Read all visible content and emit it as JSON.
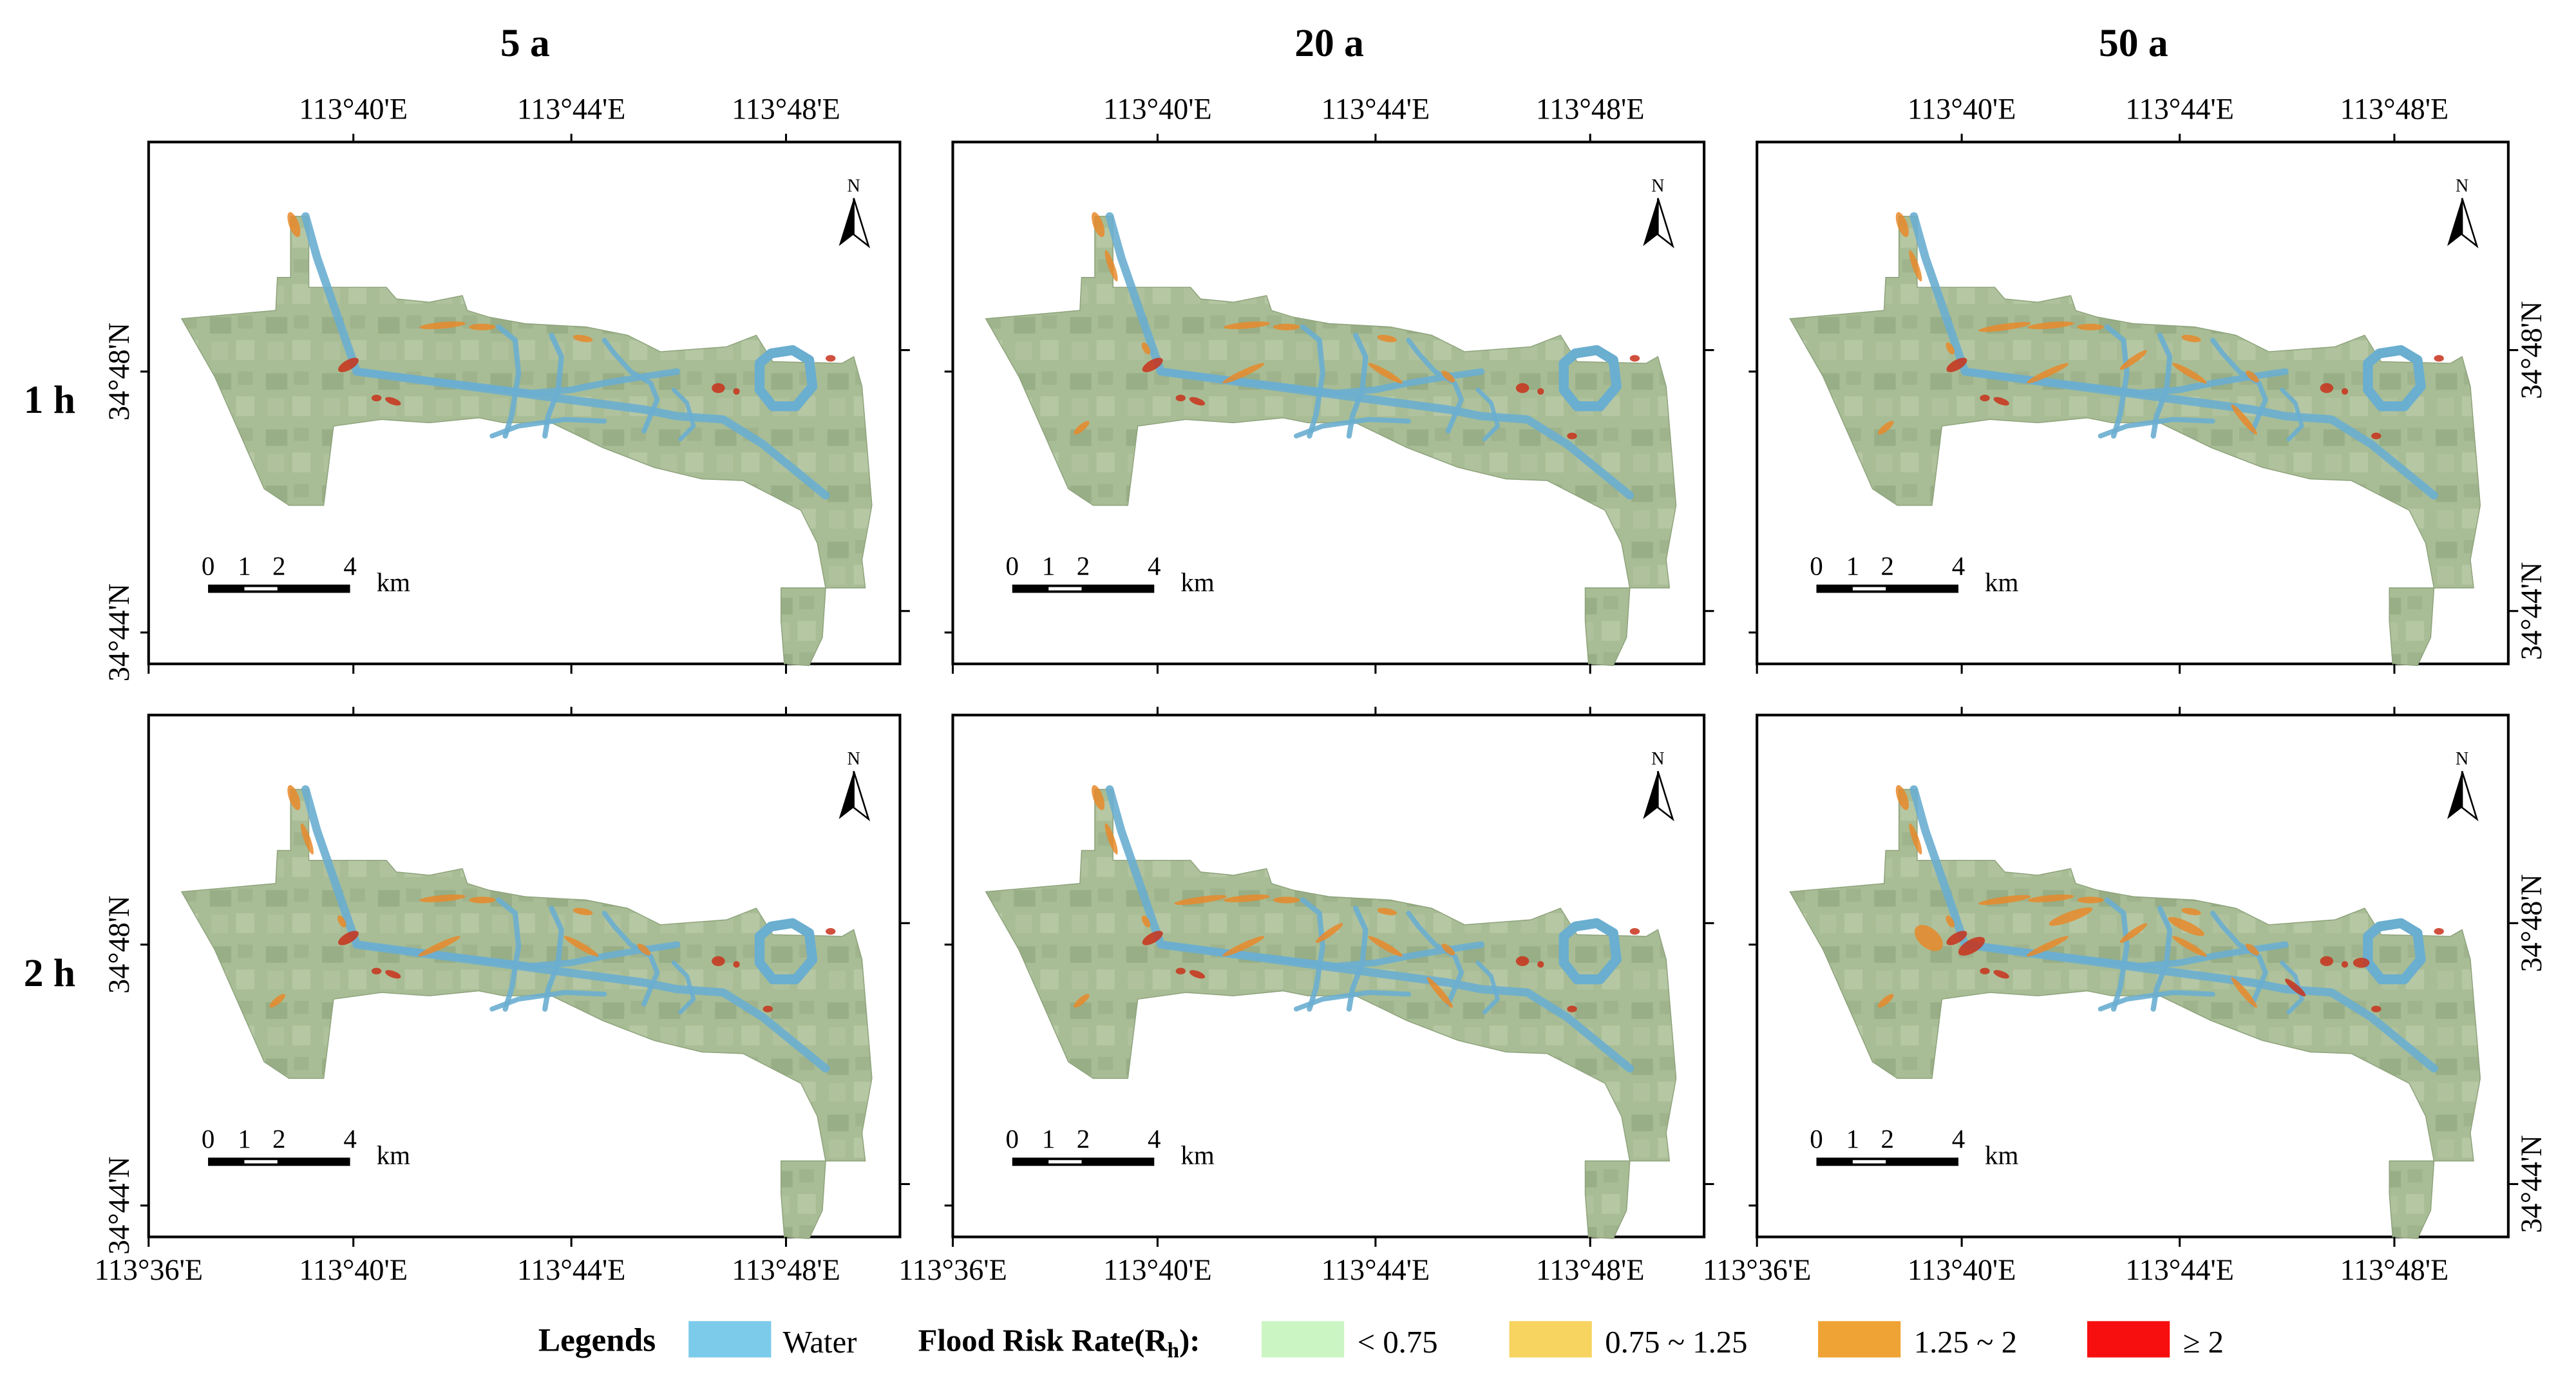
{
  "columns": [
    {
      "label": "5 a",
      "top_ticks": [
        "113°40'E",
        "113°44'E",
        "113°48'E"
      ]
    },
    {
      "label": "20 a",
      "top_ticks": [
        "113°40'E",
        "113°44'E",
        "113°48'E"
      ]
    },
    {
      "label": "50 a",
      "top_ticks": [
        "113°40'E",
        "113°44'E",
        "113°48'E"
      ]
    }
  ],
  "rows": [
    {
      "label": "1 h",
      "lat_ticks": [
        "34°48'N",
        "34°44'N"
      ]
    },
    {
      "label": "2 h",
      "lat_ticks": [
        "34°48'N",
        "34°44'N"
      ]
    }
  ],
  "bottom_ticks": [
    "113°36'E",
    "113°40'E",
    "113°44'E",
    "113°48'E"
  ],
  "north_arrow": "N",
  "scale_bar": {
    "labels": [
      "0",
      "1",
      "2",
      "4"
    ],
    "unit": "km"
  },
  "legend": {
    "title": "Legends",
    "water": {
      "label": "Water",
      "color": "#7ccbeb"
    },
    "risk_title": "Flood Risk Rate(R",
    "risk_sub": "h",
    "risk_tail": "):",
    "classes": [
      {
        "label": "< 0.75",
        "color": "#ccf5c4"
      },
      {
        "label": "0.75 ~ 1.25",
        "color": "#f7d35f"
      },
      {
        "label": "1.25 ~ 2",
        "color": "#efa335"
      },
      {
        "label": "≥ 2",
        "color": "#f70f0f"
      }
    ]
  },
  "colors": {
    "land": "#a7bc94",
    "land_dark": "#93aa82",
    "water": "#6aaed0",
    "flood_red": "#c8311b",
    "flood_orange": "#e88a2a"
  }
}
